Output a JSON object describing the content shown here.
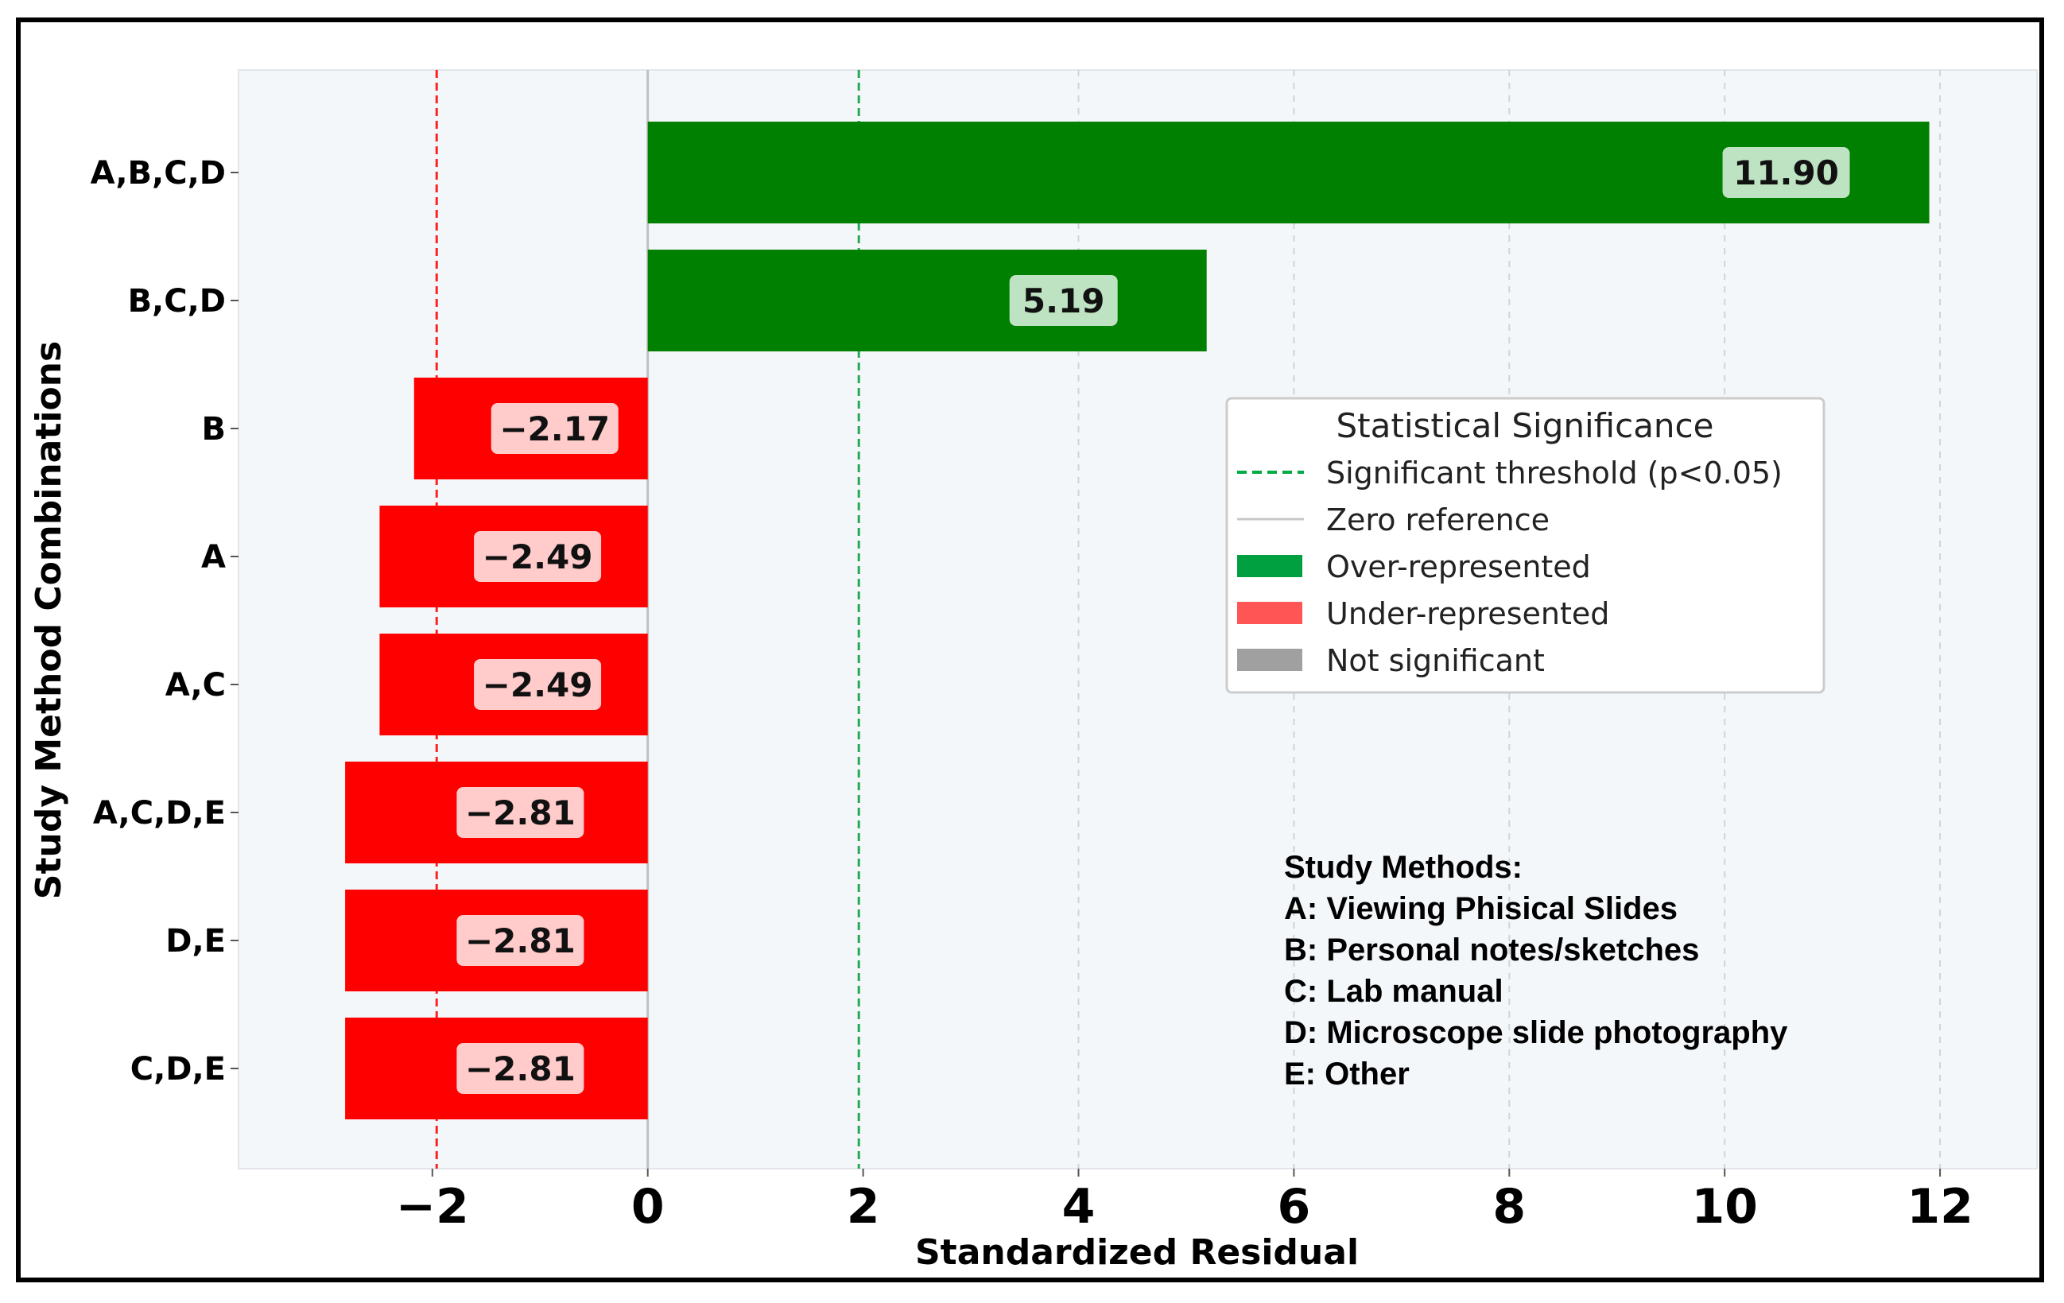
{
  "chart_data": {
    "type": "bar",
    "orientation": "horizontal",
    "categories": [
      "A,B,C,D",
      "B,C,D",
      "B",
      "A",
      "A,C",
      "A,C,D,E",
      "D,E",
      "C,D,E"
    ],
    "values": [
      11.9,
      5.19,
      -2.17,
      -2.49,
      -2.49,
      -2.81,
      -2.81,
      -2.81
    ],
    "value_labels": [
      "11.90",
      "5.19",
      "−2.17",
      "−2.49",
      "−2.49",
      "−2.81",
      "−2.81",
      "−2.81"
    ],
    "xlabel": "Standardized Residual",
    "ylabel": "Study Method Combinations",
    "xlim": [
      -3.8,
      12.9
    ],
    "xticks": [
      -2,
      0,
      2,
      4,
      6,
      8,
      10,
      12
    ],
    "xtick_labels": [
      "−2",
      "0",
      "2",
      "4",
      "6",
      "8",
      "10",
      "12"
    ],
    "grid": "x-dashed",
    "reference_lines": {
      "significant_threshold": [
        -1.96,
        1.96
      ],
      "zero": 0
    },
    "colors": {
      "over": "#008000",
      "under": "#ff0000",
      "not_significant": "#a0a0a0",
      "threshold_pos": "#22aa55",
      "threshold_neg": "#ff2222",
      "zero": "#c0c0c0",
      "plot_bg": "#f4f7fa"
    },
    "legend": {
      "title": "Statistical Significance",
      "position": "center-right",
      "entries": [
        {
          "label": "Significant threshold (p<0.05)",
          "kind": "dashed-line",
          "color": "#00aa44"
        },
        {
          "label": "Zero reference",
          "kind": "line",
          "color": "#c8c8c8"
        },
        {
          "label": "Over-represented",
          "kind": "patch",
          "color": "#00a040"
        },
        {
          "label": "Under-represented",
          "kind": "patch",
          "color": "#ff5555"
        },
        {
          "label": "Not significant",
          "kind": "patch",
          "color": "#a0a0a0"
        }
      ]
    },
    "annotation": {
      "title": "Study Methods:",
      "lines": [
        "A: Viewing Phisical Slides",
        "B: Personal notes/sketches",
        "C: Lab manual",
        "D: Microscope slide photography",
        "E: Other"
      ]
    }
  }
}
